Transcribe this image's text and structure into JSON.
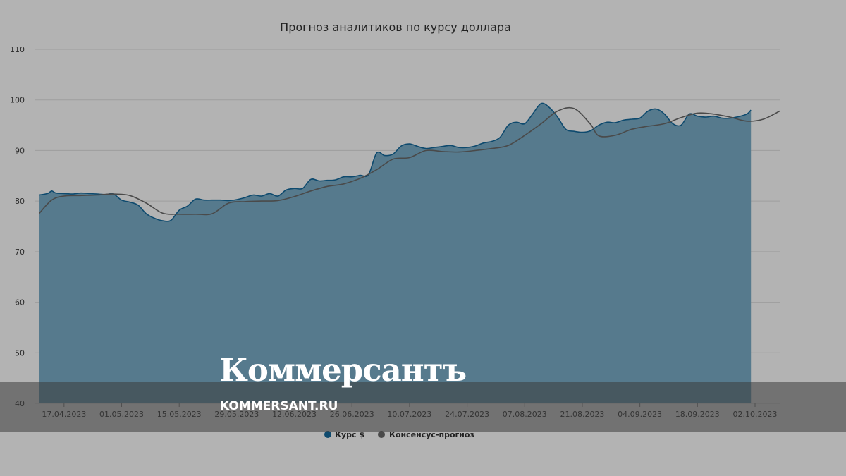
{
  "chart_data": {
    "type": "area",
    "title": "Прогноз аналитиков по курсу доллара",
    "xlabel": "",
    "ylabel": "",
    "ylim": [
      40,
      110
    ],
    "yticks": [
      40,
      50,
      60,
      70,
      80,
      90,
      100,
      110
    ],
    "x_tick_labels": [
      "17.04.2023",
      "01.05.2023",
      "15.05.2023",
      "29.05.2023",
      "12.06.2023",
      "26.06.2023",
      "10.07.2023",
      "24.07.2023",
      "07.08.2023",
      "21.08.2023",
      "04.09.2023",
      "18.09.2023",
      "02.10.2023"
    ],
    "x_tick_days": [
      6,
      20,
      34,
      48,
      62,
      76,
      90,
      104,
      118,
      132,
      146,
      160,
      174
    ],
    "x_start": "11.04.2023",
    "xlim_days": [
      -1,
      180
    ],
    "grid": true,
    "legend_position": "bottom-center",
    "series": [
      {
        "name": "Курс $",
        "kind": "area",
        "color": "#0e4a6e",
        "fill": "#567a8d",
        "points": [
          [
            0,
            81.2
          ],
          [
            2,
            81.5
          ],
          [
            3,
            82
          ],
          [
            4,
            81.6
          ],
          [
            6,
            81.5
          ],
          [
            8,
            81.4
          ],
          [
            10,
            81.6
          ],
          [
            12,
            81.5
          ],
          [
            14,
            81.4
          ],
          [
            16,
            81.3
          ],
          [
            18,
            81.4
          ],
          [
            20,
            80.2
          ],
          [
            22,
            79.8
          ],
          [
            24,
            79.2
          ],
          [
            26,
            77.5
          ],
          [
            28,
            76.6
          ],
          [
            30,
            76.1
          ],
          [
            32,
            76.2
          ],
          [
            34,
            78.2
          ],
          [
            36,
            79
          ],
          [
            38,
            80.4
          ],
          [
            40,
            80.2
          ],
          [
            42,
            80.2
          ],
          [
            44,
            80.2
          ],
          [
            46,
            80.1
          ],
          [
            48,
            80.3
          ],
          [
            50,
            80.7
          ],
          [
            52,
            81.2
          ],
          [
            54,
            81
          ],
          [
            56,
            81.5
          ],
          [
            58,
            81
          ],
          [
            60,
            82.2
          ],
          [
            62,
            82.5
          ],
          [
            64,
            82.5
          ],
          [
            66,
            84.3
          ],
          [
            68,
            84
          ],
          [
            70,
            84.1
          ],
          [
            72,
            84.2
          ],
          [
            74,
            84.8
          ],
          [
            76,
            84.8
          ],
          [
            78,
            85.1
          ],
          [
            80,
            85.2
          ],
          [
            82,
            89.5
          ],
          [
            84,
            89
          ],
          [
            86,
            89.3
          ],
          [
            88,
            90.9
          ],
          [
            90,
            91.3
          ],
          [
            92,
            90.8
          ],
          [
            94,
            90.4
          ],
          [
            96,
            90.6
          ],
          [
            98,
            90.8
          ],
          [
            100,
            91
          ],
          [
            102,
            90.6
          ],
          [
            104,
            90.6
          ],
          [
            106,
            90.9
          ],
          [
            108,
            91.5
          ],
          [
            110,
            91.8
          ],
          [
            112,
            92.6
          ],
          [
            114,
            95
          ],
          [
            116,
            95.6
          ],
          [
            118,
            95.3
          ],
          [
            120,
            97.3
          ],
          [
            122,
            99.3
          ],
          [
            124,
            98.5
          ],
          [
            126,
            96.6
          ],
          [
            128,
            94.2
          ],
          [
            130,
            93.8
          ],
          [
            132,
            93.6
          ],
          [
            134,
            93.9
          ],
          [
            136,
            95
          ],
          [
            138,
            95.6
          ],
          [
            140,
            95.5
          ],
          [
            142,
            96
          ],
          [
            144,
            96.2
          ],
          [
            146,
            96.4
          ],
          [
            148,
            97.8
          ],
          [
            150,
            98.2
          ],
          [
            152,
            97.2
          ],
          [
            154,
            95.3
          ],
          [
            156,
            95
          ],
          [
            158,
            97.2
          ],
          [
            160,
            96.8
          ],
          [
            162,
            96.6
          ],
          [
            164,
            96.8
          ],
          [
            166,
            96.4
          ],
          [
            168,
            96.4
          ],
          [
            170,
            96.7
          ],
          [
            172,
            97.2
          ],
          [
            173,
            98
          ]
        ]
      },
      {
        "name": "Консенсус-прогноз",
        "kind": "line",
        "color": "#4a4a4a",
        "points": [
          [
            0,
            77.6
          ],
          [
            3,
            80.2
          ],
          [
            6,
            81
          ],
          [
            10,
            81.1
          ],
          [
            14,
            81.2
          ],
          [
            18,
            81.4
          ],
          [
            22,
            81.1
          ],
          [
            26,
            79.6
          ],
          [
            30,
            77.6
          ],
          [
            34,
            77.4
          ],
          [
            38,
            77.4
          ],
          [
            42,
            77.5
          ],
          [
            46,
            79.6
          ],
          [
            50,
            79.9
          ],
          [
            54,
            80
          ],
          [
            58,
            80.1
          ],
          [
            62,
            80.9
          ],
          [
            66,
            82
          ],
          [
            70,
            82.9
          ],
          [
            74,
            83.4
          ],
          [
            78,
            84.5
          ],
          [
            82,
            86.2
          ],
          [
            86,
            88.3
          ],
          [
            90,
            88.6
          ],
          [
            94,
            90
          ],
          [
            98,
            89.8
          ],
          [
            102,
            89.7
          ],
          [
            106,
            90
          ],
          [
            110,
            90.4
          ],
          [
            114,
            91
          ],
          [
            118,
            93
          ],
          [
            122,
            95.3
          ],
          [
            126,
            97.8
          ],
          [
            130,
            98.3
          ],
          [
            134,
            95.2
          ],
          [
            136,
            92.9
          ],
          [
            140,
            93
          ],
          [
            144,
            94.2
          ],
          [
            148,
            94.8
          ],
          [
            152,
            95.3
          ],
          [
            156,
            96.5
          ],
          [
            160,
            97.4
          ],
          [
            164,
            97.2
          ],
          [
            168,
            96.6
          ],
          [
            172,
            95.8
          ],
          [
            176,
            96.2
          ],
          [
            180,
            97.8
          ]
        ]
      }
    ]
  },
  "watermark": {
    "logo_text": "Коммерсантъ",
    "url_text": "KOMMERSANT.RU"
  }
}
